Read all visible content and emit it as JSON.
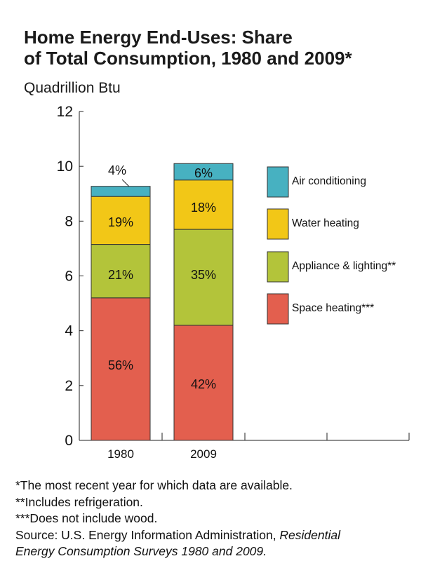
{
  "title": "Home Energy End-Uses: Share of Total Consumption, 1980 and 2009*",
  "title_line1": "Home Energy End-Uses: Share",
  "title_line2": "of Total Consumption, 1980 and 2009*",
  "subtitle": "Quadrillion Btu",
  "colors": {
    "air_conditioning": "#47b1c1",
    "water_heating": "#f2c717",
    "appliance_lighting": "#b3c43a",
    "space_heating": "#e35f4e"
  },
  "chart_data": {
    "type": "bar",
    "stacked": true,
    "title": "Home Energy End-Uses: Share of Total Consumption, 1980 and 2009*",
    "ylabel": "Quadrillion Btu",
    "xlabel": "",
    "categories": [
      "1980",
      "2009"
    ],
    "ylim": [
      0,
      12
    ],
    "yticks": [
      "0",
      "2",
      "4",
      "6",
      "8",
      "10",
      "12"
    ],
    "grid": false,
    "legend_position": "right",
    "series": [
      {
        "name": "Space heating***",
        "color": "#e35f4e",
        "values": [
          5.2,
          4.2
        ],
        "labels": [
          "56%",
          "42%"
        ]
      },
      {
        "name": "Appliance & lighting**",
        "color": "#b3c43a",
        "values": [
          1.95,
          3.5
        ],
        "labels": [
          "21%",
          "35%"
        ]
      },
      {
        "name": "Water heating",
        "color": "#f2c717",
        "values": [
          1.75,
          1.8
        ],
        "labels": [
          "19%",
          "18%"
        ]
      },
      {
        "name": "Air conditioning",
        "color": "#47b1c1",
        "values": [
          0.37,
          0.6
        ],
        "labels": [
          "4%",
          "6%"
        ]
      }
    ]
  },
  "footnotes": {
    "note1": "*The most recent year for which data are available.",
    "note2": "**Includes refrigeration.",
    "note3": "***Does not include wood.",
    "source_prefix": "Source: U.S. Energy Information Administration, ",
    "source_italic_1": "Residential",
    "source_italic_2": "Energy Consumption Surveys 1980 and 2009."
  }
}
